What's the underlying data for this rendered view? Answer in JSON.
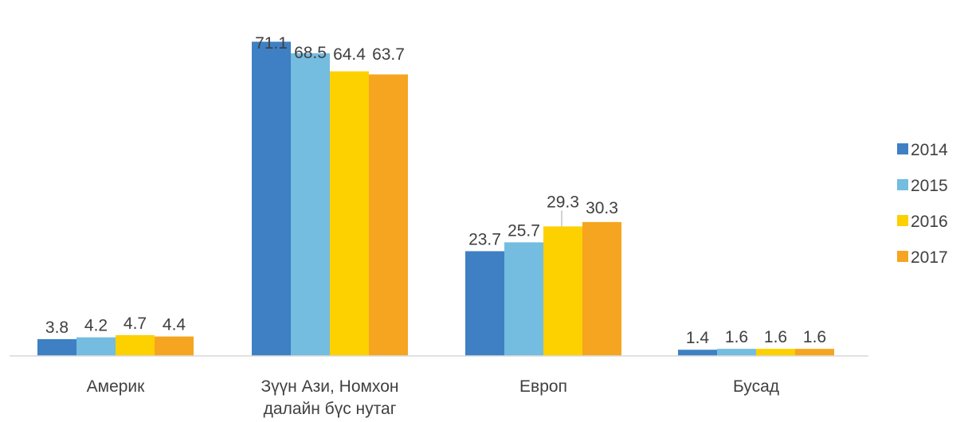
{
  "chart_data": {
    "type": "bar",
    "categories": [
      [
        "Америк"
      ],
      [
        "Зүүн Ази, Номхон",
        "далайн бүс нутаг"
      ],
      [
        "Европ"
      ],
      [
        "Бусад"
      ]
    ],
    "series": [
      {
        "name": "2014",
        "color": "#3E80C3",
        "values": [
          3.8,
          71.1,
          23.7,
          1.4
        ],
        "labels": [
          "3.8",
          "71.1",
          "23.7",
          "1.4"
        ]
      },
      {
        "name": "2015",
        "color": "#74BCE0",
        "values": [
          4.2,
          68.5,
          25.7,
          1.6
        ],
        "labels": [
          "4.2",
          "68.5",
          "25.7",
          "1.6"
        ]
      },
      {
        "name": "2016",
        "color": "#FDD000",
        "values": [
          4.7,
          64.4,
          29.3,
          1.6
        ],
        "labels": [
          "4.7",
          "64.4",
          "29.3",
          "1.6"
        ]
      },
      {
        "name": "2017",
        "color": "#F6A520",
        "values": [
          4.4,
          63.7,
          30.3,
          1.6
        ],
        "labels": [
          "4.4",
          "63.7",
          "30.3",
          "1.6"
        ]
      }
    ],
    "title": "",
    "xlabel": "",
    "ylabel": "",
    "y_axis_visible": false,
    "grid": false,
    "legend_position": "right",
    "colors": {
      "axis_line": "#D9D9D9",
      "text": "#404040",
      "leader_line": "#A6A6A6"
    }
  }
}
